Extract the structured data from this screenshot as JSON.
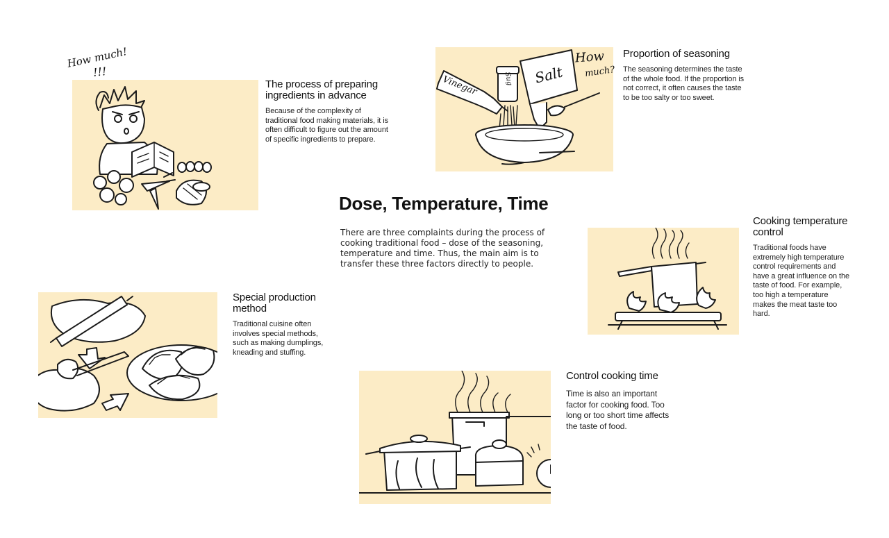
{
  "main": {
    "title": "Dose, Temperature, Time",
    "description": "There are three complaints during the process of cooking traditional food – dose of the seasoning, temperature and time. Thus, the main aim is to transfer these three factors directly to people."
  },
  "sections": {
    "prep": {
      "title": "The process of preparing ingredients in advance",
      "body": "Because of the complexity of traditional food making materials, it is often difficult to figure out the amount of specific ingredients to prepare."
    },
    "seasoning": {
      "title": "Proportion of seasoning",
      "body": "The seasoning determines the taste of the whole food. If the proportion is not correct, it often causes the taste to be too salty or too sweet."
    },
    "temperature": {
      "title": "Cooking temperature control",
      "body": "Traditional foods have extremely high temperature control requirements and have a great influence on the taste of food. For example, too high a temperature makes the meat taste too hard."
    },
    "method": {
      "title": "Special production method",
      "body": "Traditional cuisine often involves special methods, such as making dumplings, kneading and stuffing."
    },
    "time": {
      "title": "Control cooking time",
      "body": "Time is also an important factor for cooking food. Too long or too short time affects the taste of food."
    }
  },
  "illustration_text": {
    "prep_exclaim": "How much!",
    "prep_marks": "!!!",
    "vinegar_label": "Vinegar",
    "salt_label": "Salt",
    "shaker_label": "Sug",
    "seasoning_exclaim_1": "How",
    "seasoning_exclaim_2": "much?"
  },
  "colors": {
    "panel": "#fcecc6",
    "ink": "#1b1b1b",
    "background": "#ffffff"
  }
}
